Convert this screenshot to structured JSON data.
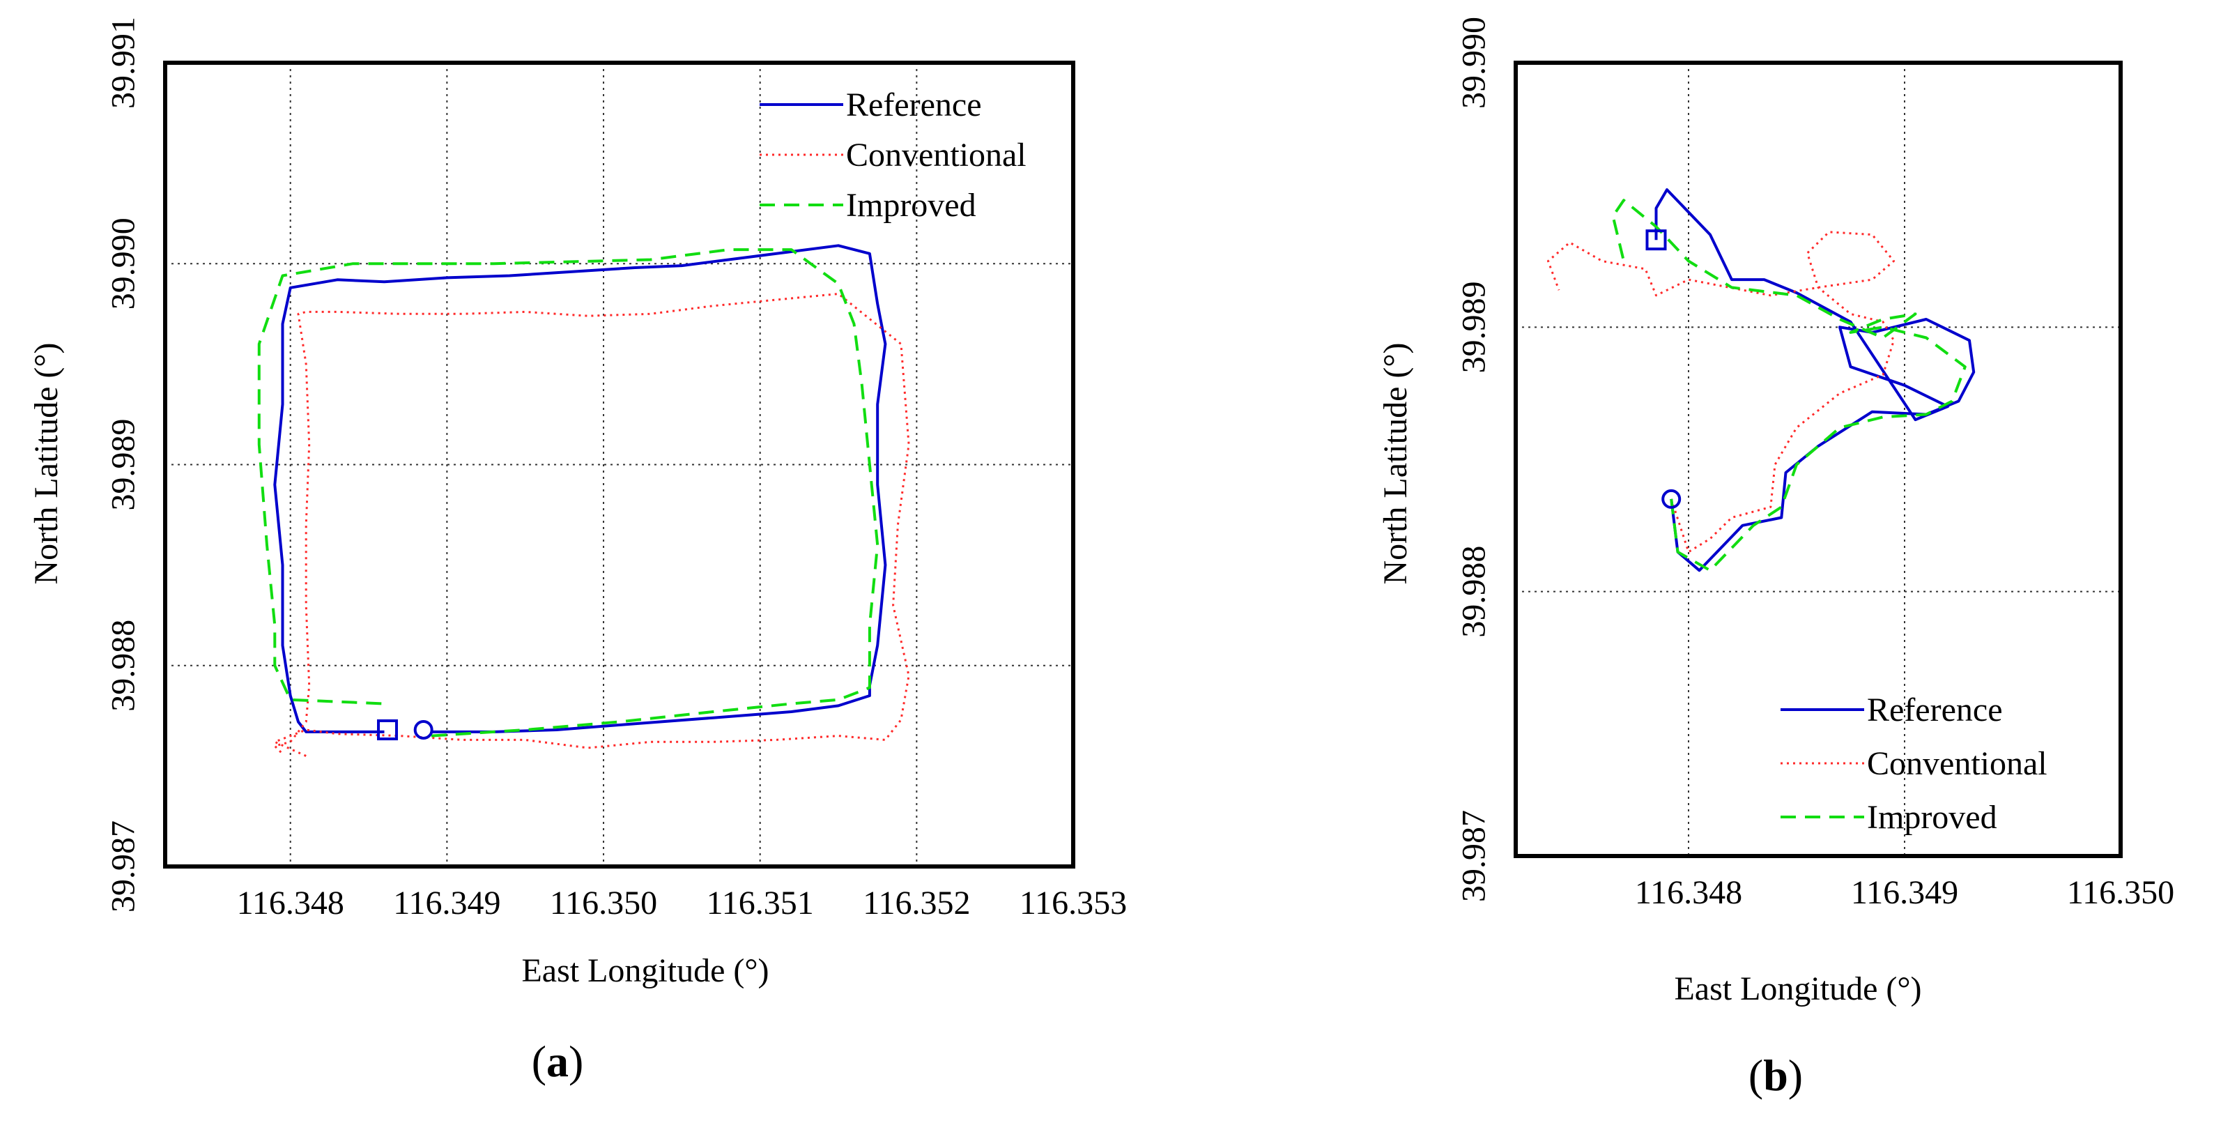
{
  "colors": {
    "reference": "#0000cc",
    "conventional": "#ff2a2a",
    "improved": "#11dd11",
    "grid": "#333333",
    "frame": "#000000"
  },
  "chart_data": [
    {
      "type": "line",
      "panel_open": "(",
      "panel_letter": "a",
      "panel_close": ")",
      "xlabel": "East Longitude (°)",
      "ylabel": "North Latitude (°)",
      "xlim": [
        116.3472,
        116.353
      ],
      "ylim": [
        39.987,
        39.991
      ],
      "xticks": [
        116.348,
        116.349,
        116.35,
        116.351,
        116.352,
        116.353
      ],
      "xtick_labels": [
        "116.348",
        "116.349",
        "116.350",
        "116.351",
        "116.352",
        "116.353"
      ],
      "yticks": [
        39.987,
        39.988,
        39.989,
        39.99,
        39.991
      ],
      "ytick_labels": [
        "39.987",
        "39.988",
        "39.989",
        "39.990",
        "39.991"
      ],
      "grid_x": [
        116.348,
        116.349,
        116.35,
        116.351,
        116.352
      ],
      "grid_y": [
        39.988,
        39.989,
        39.99
      ],
      "legend_position": "top-right",
      "start_marker": {
        "shape": "square",
        "x": 116.34862,
        "y": 39.98768
      },
      "end_marker": {
        "shape": "circle",
        "x": 116.34885,
        "y": 39.98768
      },
      "series": [
        {
          "name": "Reference",
          "style": "solid",
          "x": [
            116.3489,
            116.3493,
            116.3497,
            116.3502,
            116.3507,
            116.3512,
            116.3515,
            116.3517,
            116.3517,
            116.35175,
            116.3518,
            116.35175,
            116.35175,
            116.3518,
            116.35175,
            116.3517,
            116.3515,
            116.3512,
            116.3509,
            116.3505,
            116.3502,
            116.3498,
            116.3494,
            116.349,
            116.3486,
            116.3483,
            116.348,
            116.34795,
            116.34795,
            116.3479,
            116.34795,
            116.34795,
            116.348,
            116.34805,
            116.3481,
            116.34835,
            116.3486
          ],
          "y": [
            39.98767,
            39.98767,
            39.98768,
            39.98771,
            39.98774,
            39.98777,
            39.9878,
            39.98785,
            39.9879,
            39.9881,
            39.9885,
            39.9889,
            39.9893,
            39.9896,
            39.9898,
            39.99005,
            39.99009,
            39.99006,
            39.99003,
            39.98999,
            39.98998,
            39.98996,
            39.98994,
            39.98993,
            39.98991,
            39.98992,
            39.98988,
            39.9897,
            39.9893,
            39.9889,
            39.9885,
            39.9881,
            39.98785,
            39.98772,
            39.98767,
            39.98767,
            39.98767
          ]
        },
        {
          "name": "Conventional",
          "style": "dotted",
          "x": [
            116.3481,
            116.3479,
            116.3481,
            116.3483,
            116.3487,
            116.3491,
            116.3495,
            116.3499,
            116.3503,
            116.3507,
            116.3511,
            116.3515,
            116.3518,
            116.3519,
            116.35195,
            116.35185,
            116.35188,
            116.35195,
            116.3519,
            116.3515,
            116.3511,
            116.3507,
            116.3503,
            116.3499,
            116.3495,
            116.3491,
            116.3487,
            116.3483,
            116.3481,
            116.34805,
            116.3481,
            116.34812,
            116.3481,
            116.3481,
            116.34812,
            116.3481,
            116.348,
            116.3479,
            116.34795
          ],
          "y": [
            39.98755,
            39.98762,
            39.98768,
            39.98766,
            39.98765,
            39.98763,
            39.98763,
            39.98759,
            39.98762,
            39.98762,
            39.98763,
            39.98765,
            39.98763,
            39.98773,
            39.98795,
            39.9883,
            39.9887,
            39.9891,
            39.9896,
            39.98985,
            39.98982,
            39.98979,
            39.98975,
            39.98974,
            39.98976,
            39.98975,
            39.98975,
            39.98976,
            39.98976,
            39.98975,
            39.9895,
            39.9891,
            39.9887,
            39.9883,
            39.9879,
            39.98772,
            39.98762,
            39.9876,
            39.98756
          ]
        },
        {
          "name": "Improved",
          "style": "dashed",
          "x": [
            116.3489,
            116.3495,
            116.3501,
            116.3507,
            116.3512,
            116.3515,
            116.3517,
            116.3517,
            116.35175,
            116.3517,
            116.35165,
            116.3516,
            116.3515,
            116.3512,
            116.3508,
            116.3503,
            116.3498,
            116.3493,
            116.3488,
            116.3484,
            116.34795,
            116.3478,
            116.3478,
            116.34785,
            116.3479,
            116.3479,
            116.348,
            116.3483,
            116.3486
          ],
          "y": [
            39.98765,
            39.98768,
            39.98772,
            39.98777,
            39.98781,
            39.98783,
            39.98789,
            39.9882,
            39.9886,
            39.989,
            39.9894,
            39.9897,
            39.9899,
            39.99007,
            39.99007,
            39.99002,
            39.99001,
            39.99,
            39.99,
            39.99,
            39.98994,
            39.9896,
            39.9891,
            39.9886,
            39.9882,
            39.988,
            39.98783,
            39.98782,
            39.98781
          ]
        }
      ]
    },
    {
      "type": "line",
      "panel_open": "(",
      "panel_letter": "b",
      "panel_close": ")",
      "xlabel": "East Longitude (°)",
      "ylabel": "North Latitude (°)",
      "xlim": [
        116.3472,
        116.35
      ],
      "ylim": [
        39.987,
        39.99
      ],
      "xticks": [
        116.348,
        116.349,
        116.35
      ],
      "xtick_labels": [
        "116.348",
        "116.349",
        "116.350"
      ],
      "yticks": [
        39.987,
        39.988,
        39.989,
        39.99
      ],
      "ytick_labels": [
        "39.987",
        "39.988",
        "39.989",
        "39.990"
      ],
      "grid_x": [
        116.348,
        116.349
      ],
      "grid_y": [
        39.988,
        39.989
      ],
      "legend_position": "bottom-right",
      "start_marker": {
        "shape": "square",
        "x": 116.34785,
        "y": 39.98933
      },
      "end_marker": {
        "shape": "circle",
        "x": 116.34792,
        "y": 39.98835
      },
      "series": [
        {
          "name": "Reference",
          "style": "solid",
          "x": [
            116.34792,
            116.34795,
            116.34805,
            116.34825,
            116.34843,
            116.34845,
            116.3486,
            116.34885,
            116.3491,
            116.34925,
            116.34932,
            116.3493,
            116.3491,
            116.34885,
            116.3487,
            116.34875,
            116.349,
            116.3492,
            116.34905,
            116.34875,
            116.3485,
            116.34835,
            116.3482,
            116.3481,
            116.3479,
            116.34785,
            116.34785
          ],
          "y": [
            39.98835,
            39.98815,
            39.98808,
            39.98825,
            39.98828,
            39.98845,
            39.98855,
            39.98868,
            39.98867,
            39.98872,
            39.98883,
            39.98895,
            39.98903,
            39.98898,
            39.989,
            39.98885,
            39.98878,
            39.9887,
            39.98865,
            39.98902,
            39.98913,
            39.98918,
            39.98918,
            39.98935,
            39.98952,
            39.98945,
            39.98933
          ]
        },
        {
          "name": "Conventional",
          "style": "dotted",
          "x": [
            116.34792,
            116.348,
            116.3481,
            116.3482,
            116.34838,
            116.3484,
            116.3485,
            116.3487,
            116.3489,
            116.34895,
            116.3489,
            116.34875,
            116.3486,
            116.34855,
            116.34865,
            116.34885,
            116.34895,
            116.34885,
            116.3486,
            116.34838,
            116.348,
            116.34785,
            116.3478,
            116.3476,
            116.34745,
            116.34735,
            116.3474
          ],
          "y": [
            39.98835,
            39.98815,
            39.9882,
            39.98828,
            39.98832,
            39.98848,
            39.98862,
            39.98875,
            39.98882,
            39.98895,
            39.98902,
            39.98905,
            39.98915,
            39.98928,
            39.98936,
            39.98935,
            39.98925,
            39.98918,
            39.98915,
            39.98912,
            39.98918,
            39.98912,
            39.98922,
            39.98925,
            39.98932,
            39.98925,
            39.98914
          ]
        },
        {
          "name": "Improved",
          "style": "dashed",
          "x": [
            116.34792,
            116.34795,
            116.3481,
            116.3483,
            116.34843,
            116.3485,
            116.3487,
            116.3489,
            116.3491,
            116.34922,
            116.34928,
            116.3491,
            116.3489,
            116.34875,
            116.3489,
            116.34905,
            116.3489,
            116.3487,
            116.3485,
            116.3482,
            116.348,
            116.34785,
            116.3477,
            116.34765,
            116.3477
          ],
          "y": [
            39.98835,
            39.98815,
            39.98808,
            39.98825,
            39.98832,
            39.98848,
            39.98862,
            39.98866,
            39.98867,
            39.98872,
            39.98885,
            39.98896,
            39.989,
            39.98898,
            39.98903,
            39.98905,
            39.98896,
            39.98903,
            39.98912,
            39.98915,
            39.98925,
            39.98938,
            39.98948,
            39.98942,
            39.98925
          ]
        }
      ]
    }
  ]
}
